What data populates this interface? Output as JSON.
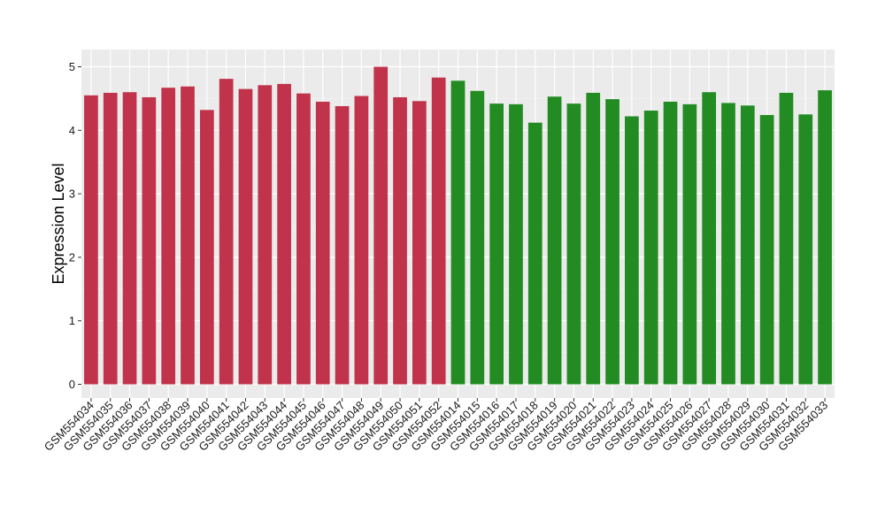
{
  "chart_data": {
    "type": "bar",
    "title": "",
    "xlabel": "",
    "ylabel": "Expression Level",
    "ylim": [
      0,
      5.25
    ],
    "yticks": [
      0,
      1,
      2,
      3,
      4,
      5
    ],
    "grid": true,
    "legend": "none",
    "colors": {
      "group1": "#c0334a",
      "group2": "#228b22",
      "panel": "#ebebeb",
      "gridline": "#ffffff"
    },
    "categories": [
      "GSM554034",
      "GSM554035",
      "GSM554036",
      "GSM554037",
      "GSM554038",
      "GSM554039",
      "GSM554040",
      "GSM554041",
      "GSM554042",
      "GSM554043",
      "GSM554044",
      "GSM554045",
      "GSM554046",
      "GSM554047",
      "GSM554048",
      "GSM554049",
      "GSM554050",
      "GSM554051",
      "GSM554052",
      "GSM554014",
      "GSM554015",
      "GSM554016",
      "GSM554017",
      "GSM554018",
      "GSM554019",
      "GSM554020",
      "GSM554021",
      "GSM554022",
      "GSM554023",
      "GSM554024",
      "GSM554025",
      "GSM554026",
      "GSM554027",
      "GSM554028",
      "GSM554029",
      "GSM554030",
      "GSM554031",
      "GSM554032",
      "GSM554033"
    ],
    "values": [
      4.55,
      4.59,
      4.6,
      4.52,
      4.67,
      4.69,
      4.32,
      4.81,
      4.65,
      4.71,
      4.73,
      4.58,
      4.45,
      4.38,
      4.54,
      5.0,
      4.52,
      4.46,
      4.83,
      4.78,
      4.62,
      4.42,
      4.41,
      4.12,
      4.53,
      4.42,
      4.59,
      4.49,
      4.22,
      4.31,
      4.45,
      4.41,
      4.6,
      4.43,
      4.39,
      4.24,
      4.59,
      4.25,
      4.63
    ],
    "groups": [
      1,
      1,
      1,
      1,
      1,
      1,
      1,
      1,
      1,
      1,
      1,
      1,
      1,
      1,
      1,
      1,
      1,
      1,
      1,
      2,
      2,
      2,
      2,
      2,
      2,
      2,
      2,
      2,
      2,
      2,
      2,
      2,
      2,
      2,
      2,
      2,
      2,
      2,
      2
    ]
  }
}
